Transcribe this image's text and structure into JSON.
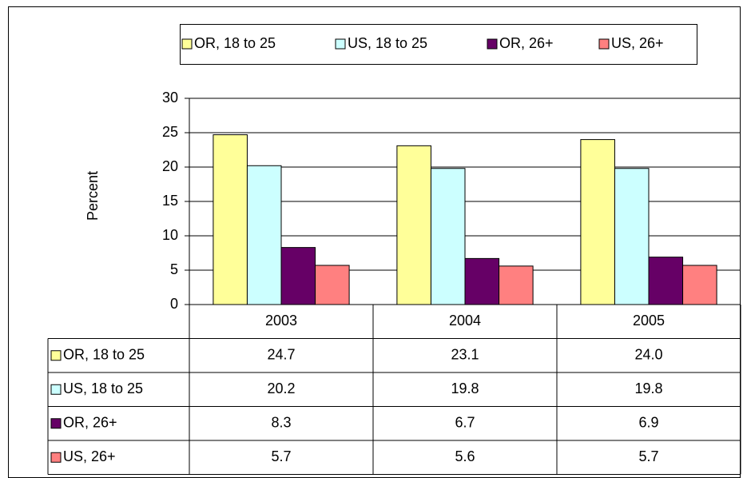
{
  "chart_data": {
    "type": "bar",
    "y_label": "Percent",
    "categories": [
      "2003",
      "2004",
      "2005"
    ],
    "series": [
      {
        "name": "OR, 18 to 25",
        "color": "#ffff99",
        "values": [
          24.7,
          23.1,
          24.0
        ],
        "value_labels": [
          "24.7",
          "23.1",
          "24.0"
        ]
      },
      {
        "name": "US, 18 to 25",
        "color": "#ccffff",
        "values": [
          20.2,
          19.8,
          19.8
        ],
        "value_labels": [
          "20.2",
          "19.8",
          "19.8"
        ]
      },
      {
        "name": "OR, 26+",
        "color": "#660066",
        "values": [
          8.3,
          6.7,
          6.9
        ],
        "value_labels": [
          "8.3",
          "6.7",
          "6.9"
        ]
      },
      {
        "name": "US, 26+",
        "color": "#ff8080",
        "values": [
          5.7,
          5.6,
          5.7
        ],
        "value_labels": [
          "5.7",
          "5.6",
          "5.7"
        ]
      }
    ],
    "ylim": [
      0,
      30
    ],
    "yticks": [
      0,
      5,
      10,
      15,
      20,
      25,
      30
    ],
    "grid": true,
    "legend": "top",
    "data_table": true
  }
}
